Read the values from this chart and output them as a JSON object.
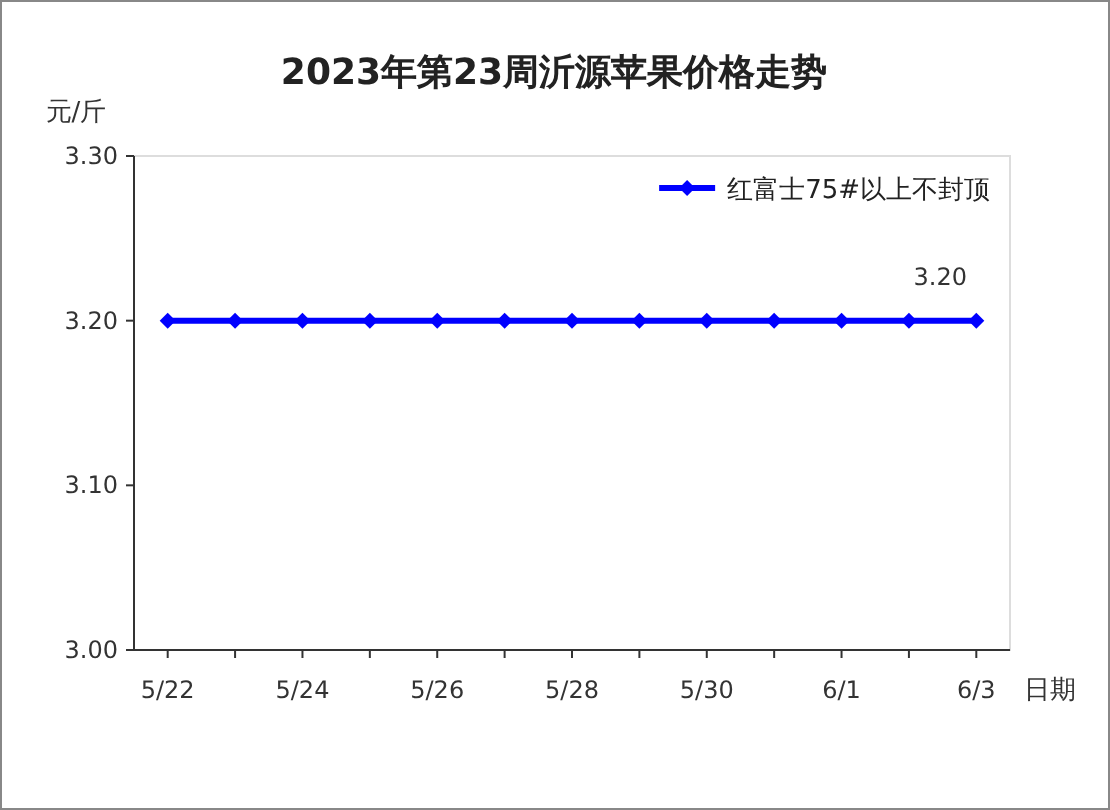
{
  "chart_data": {
    "type": "line",
    "title": "2023年第23周沂源苹果价格走势",
    "ylabel": "元/斤",
    "xlabel": "日期",
    "categories": [
      "5/22",
      null,
      "5/24",
      null,
      "5/26",
      null,
      "5/28",
      null,
      "5/30",
      null,
      "6/1",
      null,
      "6/3"
    ],
    "series": [
      {
        "name": "红富士75#以上不封顶",
        "color": "#0000ff",
        "values": [
          3.2,
          3.2,
          3.2,
          3.2,
          3.2,
          3.2,
          3.2,
          3.2,
          3.2,
          3.2,
          3.2,
          3.2,
          3.2
        ],
        "value_labels": [
          null,
          null,
          null,
          null,
          null,
          null,
          null,
          null,
          null,
          null,
          null,
          null,
          "3.20"
        ]
      }
    ],
    "ylim": [
      3.0,
      3.3
    ],
    "yticks": [
      {
        "value": 3.0,
        "label": "3.00"
      },
      {
        "value": 3.1,
        "label": "3.10"
      },
      {
        "value": 3.2,
        "label": "3.20"
      },
      {
        "value": 3.3,
        "label": "3.30"
      }
    ],
    "legend": "top right",
    "marker": "diamond",
    "line_style": "solid"
  }
}
